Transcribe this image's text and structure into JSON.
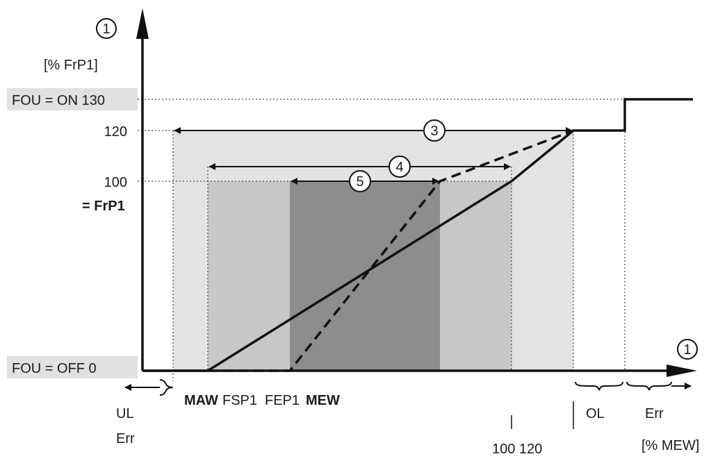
{
  "y_axis": {
    "marker": "1",
    "unit": "[% FrP1]"
  },
  "x_axis": {
    "marker": "1",
    "unit": "[% MEW]"
  },
  "y_levels": {
    "fou_on": "FOU = ON 130",
    "l120": "120",
    "l100": "100",
    "frp1": "= FrP1",
    "fou_off": "FOU = OFF 0"
  },
  "x_labels": {
    "maw": "MAW",
    "fsp1": "FSP1",
    "fep1": "FEP1",
    "mew": "MEW",
    "x100_120": "100 120"
  },
  "regions": {
    "ul": "UL",
    "ul_err": "Err",
    "ol": "OL",
    "err": "Err"
  },
  "ranges": [
    {
      "marker": "3"
    },
    {
      "marker": "4"
    },
    {
      "marker": "5"
    }
  ],
  "colors": {
    "light": "#e3e3e3",
    "medium": "#c7c7c7",
    "dark": "#8d8d8d",
    "label_bg": "#e1e1e1",
    "ink": "#111111"
  }
}
